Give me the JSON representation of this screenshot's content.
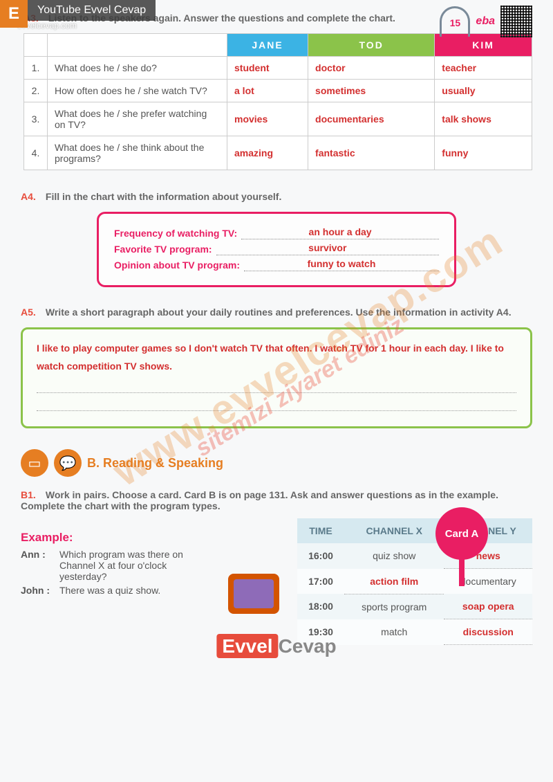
{
  "watermark": {
    "badge": "E",
    "topbar": "YouTube Evvel Cevap",
    "url": "evvelcevap.com",
    "diag1": "www.evvelcevap.com",
    "diag2": "sitemizi ziyaret ediniz",
    "footer_left": "Evvel",
    "footer_right": "Cevap"
  },
  "header": {
    "audio_num": "15",
    "eba": "eba"
  },
  "a3": {
    "label": "A3.",
    "instr": "Listen to the speakers again. Answer the questions and complete the chart.",
    "cols": {
      "jane": "JANE",
      "tod": "TOD",
      "kim": "KIM"
    },
    "rows": [
      {
        "n": "1.",
        "q": "What does he / she do?",
        "jane": "student",
        "tod": "doctor",
        "kim": "teacher"
      },
      {
        "n": "2.",
        "q": "How often does he / she watch TV?",
        "jane": "a lot",
        "tod": "sometimes",
        "kim": "usually"
      },
      {
        "n": "3.",
        "q": "What does he / she prefer watching on TV?",
        "jane": "movies",
        "tod": "documentaries",
        "kim": "talk shows"
      },
      {
        "n": "4.",
        "q": "What does he / she think about the programs?",
        "jane": "amazing",
        "tod": "fantastic",
        "kim": "funny"
      }
    ]
  },
  "a4": {
    "label": "A4.",
    "instr": "Fill in the chart with the information about yourself.",
    "rows": [
      {
        "lbl": "Frequency of watching TV:",
        "ans": "an hour a day"
      },
      {
        "lbl": "Favorite TV program:",
        "ans": "survivor"
      },
      {
        "lbl": "Opinion about TV program:",
        "ans": "funny to watch"
      }
    ]
  },
  "a5": {
    "label": "A5.",
    "instr": "Write a short paragraph about your daily routines and preferences. Use the information in activity A4.",
    "para": "I like to play computer games so I don't watch TV that often. I watch TV for 1 hour in each day. I like to watch competition TV shows."
  },
  "sectionB": {
    "title": "B. Reading & Speaking"
  },
  "b1": {
    "label": "B1.",
    "instr": "Work in pairs. Choose a card. Card B is on page 131. Ask and answer questions as in the example. Complete the chart with the program types.",
    "example_lbl": "Example:",
    "card": "Card A",
    "dialog": [
      {
        "who": "Ann  :",
        "what": "Which program was there on Channel X at four o'clock yesterday?"
      },
      {
        "who": "John :",
        "what": "There was a quiz show."
      }
    ],
    "table": {
      "headers": {
        "time": "TIME",
        "x": "CHANNEL X",
        "y": "CHANNEL Y"
      },
      "rows": [
        {
          "time": "16:00",
          "x": "quiz show",
          "y": "news",
          "x_ans": false,
          "y_ans": true
        },
        {
          "time": "17:00",
          "x": "action film",
          "y": "documentary",
          "x_ans": true,
          "y_ans": false
        },
        {
          "time": "18:00",
          "x": "sports program",
          "y": "soap opera",
          "x_ans": false,
          "y_ans": true
        },
        {
          "time": "19:30",
          "x": "match",
          "y": "discussion",
          "x_ans": false,
          "y_ans": true
        }
      ]
    }
  },
  "colors": {
    "red_ans": "#d32f2f",
    "pink": "#e91e63",
    "orange": "#e67e22",
    "jane": "#3bb3e4",
    "tod": "#8bc34a",
    "kim": "#e91e63"
  }
}
